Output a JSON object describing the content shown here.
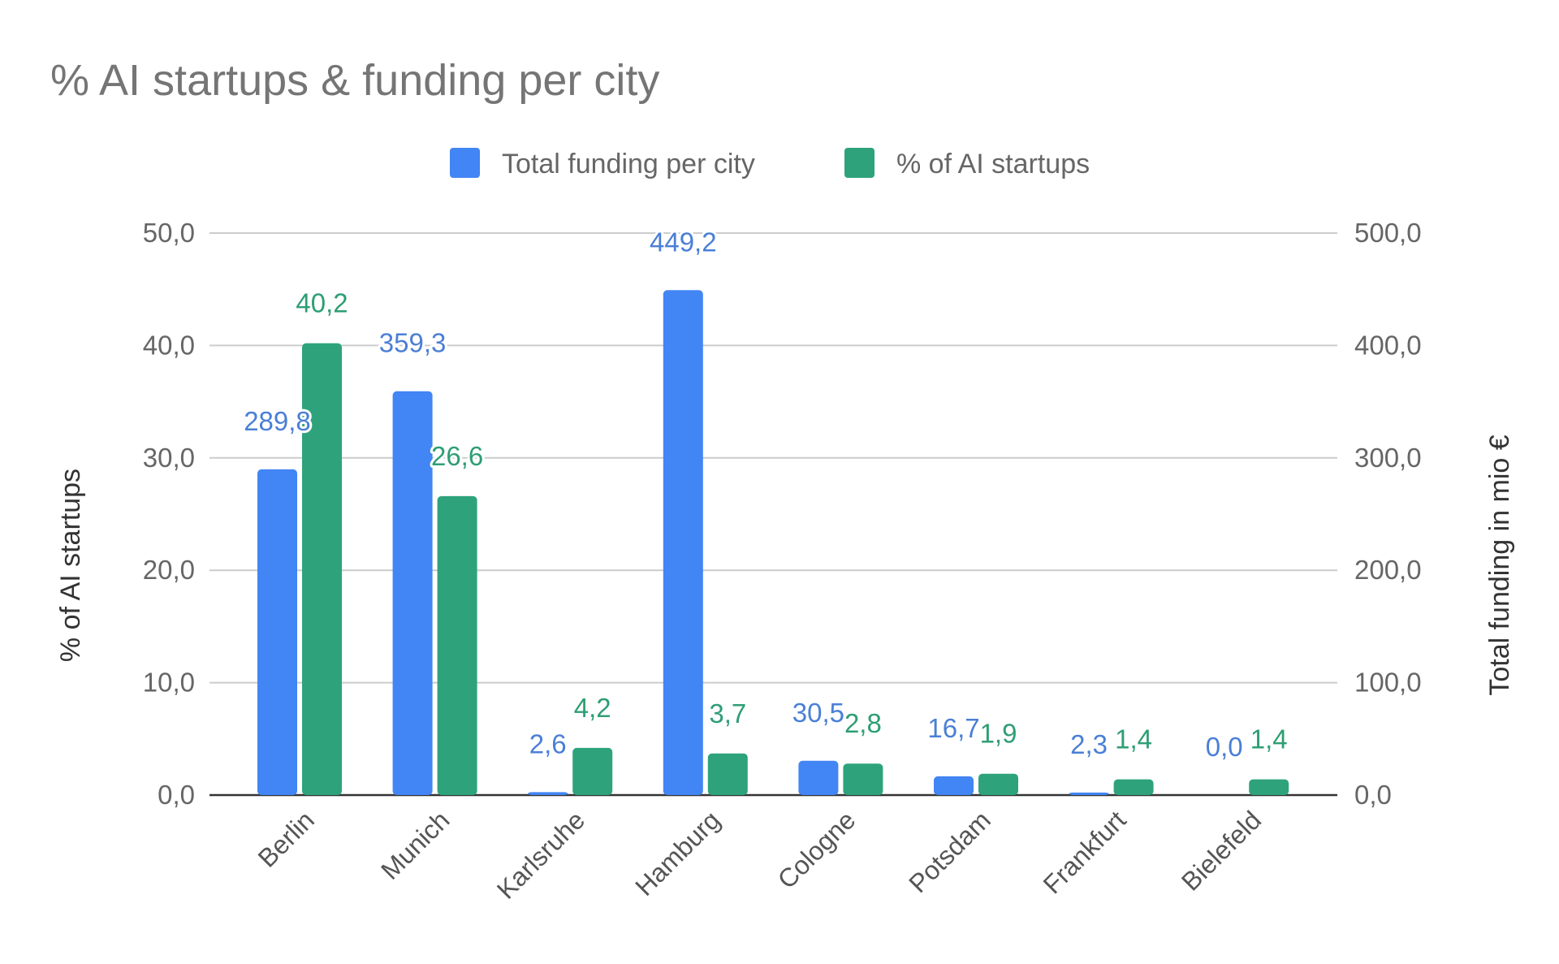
{
  "chart_data": {
    "type": "bar",
    "title": "% AI startups & funding per city",
    "categories": [
      "Berlin",
      "Munich",
      "Karlsruhe",
      "Hamburg",
      "Cologne",
      "Potsdam",
      "Frankfurt",
      "Bielefeld"
    ],
    "series": [
      {
        "name": "Total funding per city",
        "axis": "right",
        "color": "#4285f4",
        "label_color": "#4a7fd6",
        "values": [
          289.8,
          359.3,
          2.6,
          449.2,
          30.5,
          16.7,
          2.3,
          0.0
        ],
        "labels": [
          "289,8",
          "359,3",
          "2,6",
          "449,2",
          "30,5",
          "16,7",
          "2,3",
          "0,0"
        ]
      },
      {
        "name": "% of AI startups",
        "axis": "left",
        "color": "#2ea37b",
        "label_color": "#2e9e74",
        "values": [
          40.2,
          26.6,
          4.2,
          3.7,
          2.8,
          1.9,
          1.4,
          1.4
        ],
        "labels": [
          "40,2",
          "26,6",
          "4,2",
          "3,7",
          "2,8",
          "1,9",
          "1,4",
          "1,4"
        ]
      }
    ],
    "ylabel_left": "% of AI startups",
    "ylabel_right": "Total funding in mio €",
    "ylim_left": [
      0,
      50
    ],
    "ylim_right": [
      0,
      500
    ],
    "yticks_left": [
      "0,0",
      "10,0",
      "20,0",
      "30,0",
      "40,0",
      "50,0"
    ],
    "yticks_right": [
      "0,0",
      "100,0",
      "200,0",
      "300,0",
      "400,0",
      "500,0"
    ],
    "grid": true,
    "legend": "top"
  }
}
